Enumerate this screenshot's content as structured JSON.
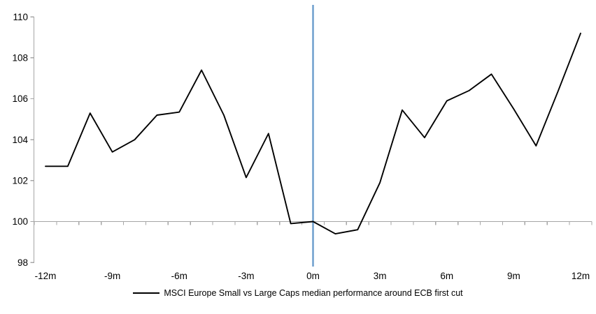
{
  "chart_data": {
    "type": "line",
    "x_months": [
      -12,
      -11,
      -10,
      -9,
      -8,
      -7,
      -6,
      -5,
      -4,
      -3,
      -2,
      -1,
      0,
      1,
      2,
      3,
      4,
      5,
      6,
      7,
      8,
      9,
      10,
      11,
      12
    ],
    "series": [
      {
        "name": "MSCI Europe Small vs Large Caps median performance around ECB first cut",
        "values": [
          102.7,
          102.7,
          105.3,
          103.4,
          104.0,
          105.2,
          105.35,
          107.4,
          105.2,
          102.15,
          104.3,
          99.9,
          100.0,
          99.4,
          99.6,
          101.9,
          105.45,
          104.1,
          105.9,
          106.4,
          107.2,
          105.5,
          103.7,
          106.4,
          109.2
        ]
      }
    ],
    "ylim": [
      98,
      110
    ],
    "y_ticks": [
      110,
      108,
      106,
      104,
      102,
      100,
      98
    ],
    "y_tick_labels": [
      "110",
      "108",
      "106",
      "104",
      "102",
      "100",
      "98"
    ],
    "x_tick_months": [
      -12,
      -9,
      -6,
      -3,
      0,
      3,
      6,
      9,
      12
    ],
    "x_tick_labels": [
      "-12m",
      "-9m",
      "-6m",
      "-3m",
      "0m",
      "3m",
      "6m",
      "9m",
      "12m"
    ],
    "baseline_value": 100,
    "event_line_month": 0,
    "legend": "MSCI Europe Small vs Large Caps median performance around ECB first cut",
    "grid": "baseline-only",
    "legend_position": "bottom-center",
    "colors": {
      "series": "#000000",
      "event_line": "#6f9fcd",
      "axis": "#a6a6a6",
      "text": "#000000"
    }
  }
}
